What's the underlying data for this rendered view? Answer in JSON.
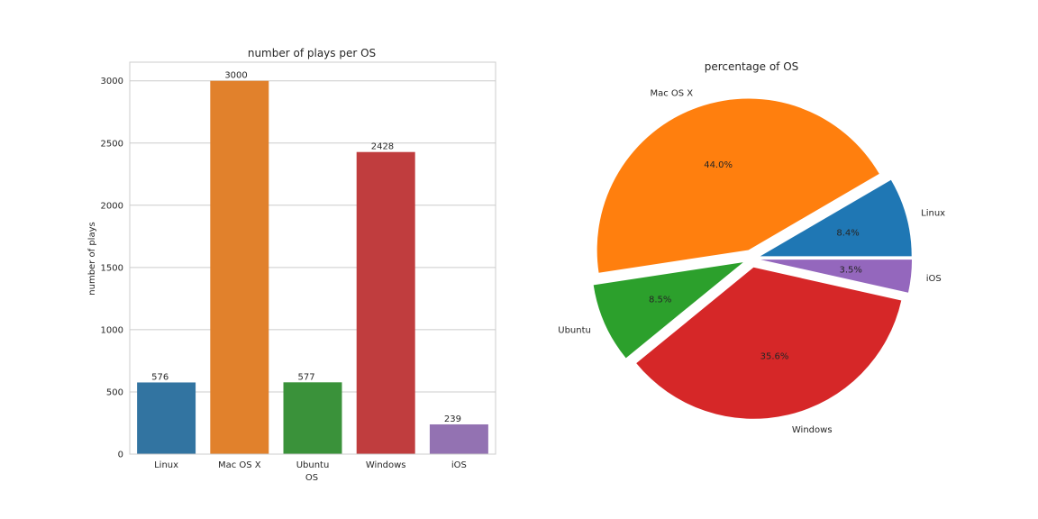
{
  "chart_data": [
    {
      "type": "bar",
      "title": "number of plays per OS",
      "xlabel": "OS",
      "ylabel": "number of plays",
      "categories": [
        "Linux",
        "Mac OS X",
        "Ubuntu",
        "Windows",
        "iOS"
      ],
      "values": [
        576,
        3000,
        577,
        2428,
        239
      ],
      "value_labels": [
        "576",
        "3000",
        "577",
        "2428",
        "239"
      ],
      "colors": [
        "#3274a1",
        "#e1812c",
        "#3a923a",
        "#c03d3e",
        "#9372b2"
      ],
      "ylim": [
        0,
        3150
      ],
      "yticks": [
        0,
        500,
        1000,
        1500,
        2000,
        2500,
        3000
      ],
      "ytick_labels": [
        "0",
        "500",
        "1000",
        "1500",
        "2000",
        "2500",
        "3000"
      ],
      "grid": true
    },
    {
      "type": "pie",
      "title": "percentage of OS",
      "labels": [
        "Linux",
        "Mac OS X",
        "Ubuntu",
        "Windows",
        "iOS"
      ],
      "values": [
        8.4,
        44.0,
        8.5,
        35.6,
        3.5
      ],
      "percent_labels": [
        "8.4%",
        "44.0%",
        "8.5%",
        "35.6%",
        "3.5%"
      ],
      "colors": [
        "#1f77b4",
        "#ff7f0e",
        "#2ca02c",
        "#d62728",
        "#9467bd"
      ],
      "exploded": true
    }
  ]
}
